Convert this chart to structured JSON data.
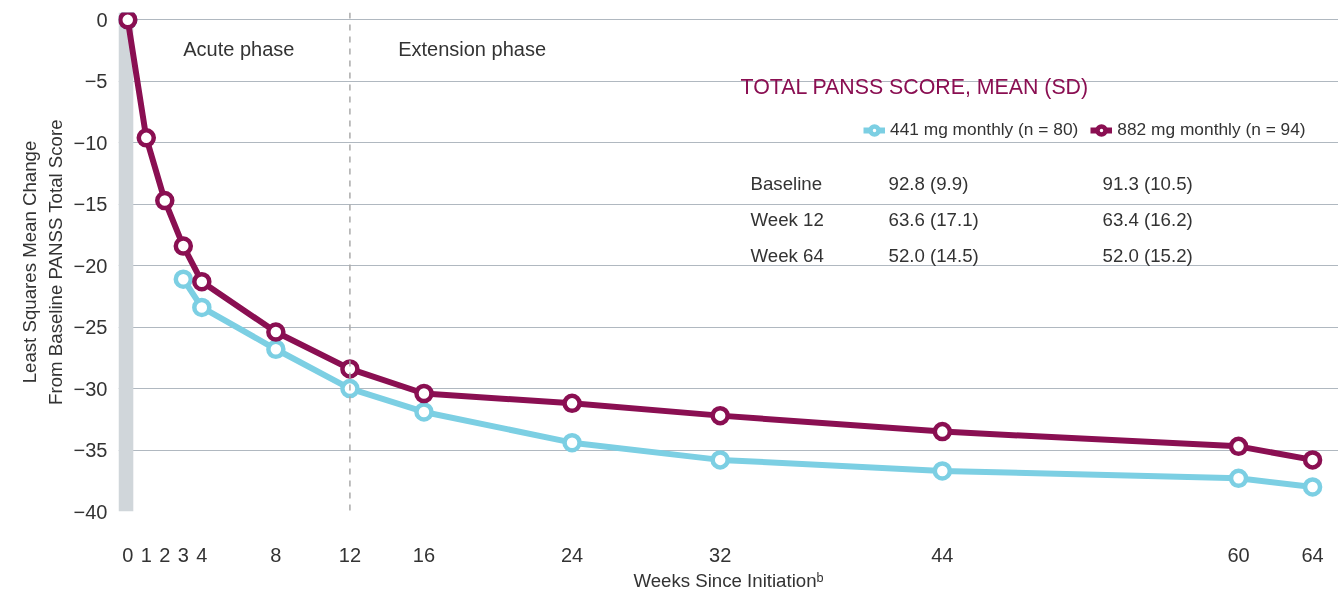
{
  "chart_data": {
    "type": "line",
    "xlabel": "Weeks Since Initiationᵇ",
    "ylabel": "Least Squares Mean Change\nFrom Baseline PANSS Total Score",
    "x": [
      0,
      1,
      2,
      3,
      4,
      8,
      12,
      16,
      24,
      32,
      44,
      60,
      64
    ],
    "series": [
      {
        "name": "441 mg monthly (n = 80)",
        "color": "#7ccfe3",
        "values": [
          0,
          null,
          null,
          -21.1,
          -23.4,
          -26.8,
          -30.0,
          -31.9,
          -34.4,
          -35.8,
          -36.7,
          -37.3,
          -38.0
        ]
      },
      {
        "name": "882 mg monthly (n = 94)",
        "color": "#8a0f52",
        "values": [
          0,
          -9.6,
          -14.7,
          -18.4,
          -21.3,
          -25.4,
          -28.4,
          -30.4,
          -31.2,
          -32.2,
          -33.5,
          -34.7,
          -35.8
        ]
      }
    ],
    "xlim": [
      -0.5,
      65.4
    ],
    "xticks": [
      0,
      1,
      2,
      3,
      4,
      8,
      12,
      16,
      24,
      32,
      44,
      60,
      64
    ],
    "ylim": [
      -40,
      0.6
    ],
    "yticks": [
      0,
      -5,
      -10,
      -15,
      -20,
      -25,
      -30,
      -35,
      -40
    ],
    "grid": "y",
    "marker": "circle",
    "line_style": "solid",
    "legend": "top right",
    "bands": [
      {
        "axis": "x",
        "from": -0.5,
        "to": 0.3,
        "color": "#d0d6da"
      }
    ],
    "ref_lines": [
      {
        "axis": "x",
        "value": 12,
        "color": "#aaaaaa",
        "line_style": "dashed"
      }
    ],
    "annotations": [
      "Acute phase",
      "Extension phase",
      "TOTAL PANSS SCORE, MEAN (SD)",
      "Baseline",
      "92.8 (9.9)",
      "91.3 (10.5)",
      "Week 12",
      "63.6 (17.1)",
      "63.4 (16.2)",
      "Week 64",
      "52.0 (14.5)",
      "52.0 (15.2)"
    ]
  }
}
